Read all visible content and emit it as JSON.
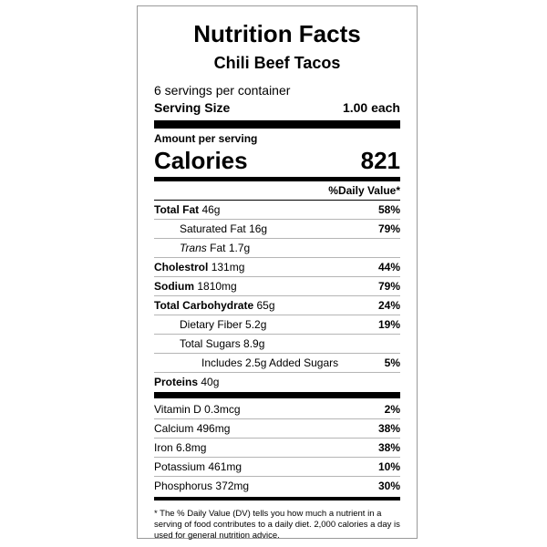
{
  "label": {
    "title": "Nutrition Facts",
    "product": "Chili Beef Tacos",
    "servings_per_container": "6 servings per container",
    "serving_size_label": "Serving Size",
    "serving_size_value": "1.00 each",
    "amount_per_serving": "Amount per serving",
    "calories_label": "Calories",
    "calories_value": "821",
    "daily_value_header": "%Daily Value*"
  },
  "nutrients": [
    {
      "name": "Total Fat",
      "amount": "46g",
      "dv": "58%"
    },
    {
      "name": "Saturated Fat",
      "amount": "16g",
      "dv": "79%"
    },
    {
      "name_italic": "Trans",
      "name": "Fat",
      "amount": "1.7g",
      "dv": ""
    },
    {
      "name": "Cholestrol",
      "amount": "131mg",
      "dv": "44%"
    },
    {
      "name": "Sodium",
      "amount": "1810mg",
      "dv": "79%"
    },
    {
      "name": "Total Carbohydrate",
      "amount": "65g",
      "dv": "24%"
    },
    {
      "name": "Dietary Fiber",
      "amount": "5.2g",
      "dv": "19%"
    },
    {
      "name": "Total Sugars",
      "amount": "8.9g",
      "dv": ""
    },
    {
      "name": "Includes 2.5g Added Sugars",
      "dv": "5%"
    },
    {
      "name": "Proteins",
      "amount": "40g",
      "dv": ""
    }
  ],
  "vitamins": [
    {
      "name": "Vitamin D",
      "amount": "0.3mcg",
      "dv": "2%"
    },
    {
      "name": "Calcium",
      "amount": "496mg",
      "dv": "38%"
    },
    {
      "name": "Iron",
      "amount": "6.8mg",
      "dv": "38%"
    },
    {
      "name": "Potassium",
      "amount": "461mg",
      "dv": "10%"
    },
    {
      "name": "Phosphorus",
      "amount": "372mg",
      "dv": "30%"
    }
  ],
  "footnote": "* The % Daily Value (DV) tells you how much a nutrient in a serving of food contributes to a daily diet. 2,000 calories a day is used for general nutrition advice."
}
